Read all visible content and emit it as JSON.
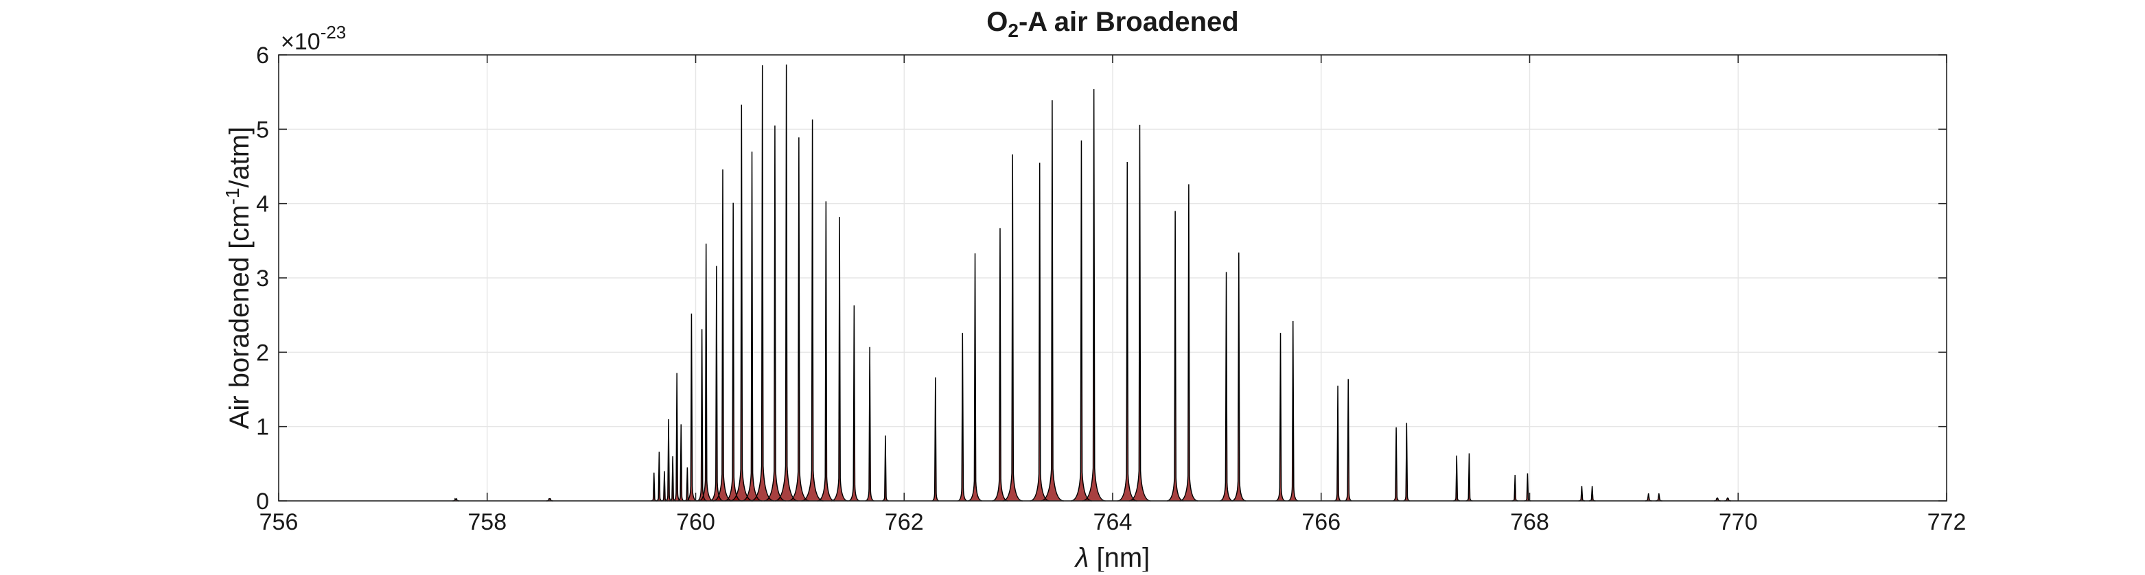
{
  "chart_data": {
    "type": "line",
    "title": {
      "main": "O",
      "sub": "2",
      "rest": "-A air Broadened"
    },
    "xlabel": {
      "symbol": "λ",
      "rest": " [nm]"
    },
    "ylabel": {
      "pre": "Air boradened [cm",
      "sup": "-1",
      "post": "/atm]"
    },
    "y_exponent": {
      "base": "×10",
      "power": "-23"
    },
    "xlim": [
      756,
      772
    ],
    "ylim": [
      0,
      6
    ],
    "x_ticks": [
      "756",
      "758",
      "760",
      "762",
      "764",
      "766",
      "768",
      "770",
      "772"
    ],
    "y_ticks": [
      "0",
      "1",
      "2",
      "3",
      "4",
      "5",
      "6"
    ],
    "grid": true,
    "colors": {
      "profile": "#000000",
      "fill": "#8b0000",
      "grid": "#e6e6e6",
      "axis": "#262626"
    },
    "series": [
      {
        "x": [
          757.7,
          758.6,
          759.6,
          759.65,
          759.7,
          759.74,
          759.78,
          759.82,
          759.86,
          759.92,
          759.96,
          760.06,
          760.1,
          760.2,
          760.26,
          760.36,
          760.44,
          760.54,
          760.64,
          760.76,
          760.87,
          760.99,
          761.12,
          761.25,
          761.38,
          761.52,
          761.67,
          761.82,
          762.3,
          762.56,
          762.68,
          762.92,
          763.04,
          763.3,
          763.42,
          763.7,
          763.82,
          764.14,
          764.26,
          764.6,
          764.73,
          765.09,
          765.21,
          765.61,
          765.73,
          766.16,
          766.26,
          766.72,
          766.82,
          767.3,
          767.42,
          767.86,
          767.98,
          768.5,
          768.6,
          769.14,
          769.24,
          769.8,
          769.9
        ],
        "y": [
          0.02,
          0.03,
          0.38,
          0.66,
          0.4,
          1.1,
          0.6,
          1.72,
          1.03,
          0.45,
          2.52,
          2.31,
          3.46,
          3.16,
          4.46,
          4.01,
          5.33,
          4.7,
          5.86,
          5.05,
          5.87,
          4.89,
          5.13,
          4.03,
          3.82,
          2.63,
          2.07,
          0.88,
          1.66,
          2.26,
          3.33,
          3.67,
          4.66,
          4.55,
          5.39,
          4.85,
          5.54,
          4.56,
          5.06,
          3.9,
          4.26,
          3.08,
          3.34,
          2.26,
          2.42,
          1.55,
          1.64,
          0.99,
          1.05,
          0.61,
          0.64,
          0.35,
          0.37,
          0.2,
          0.2,
          0.1,
          0.1,
          0.04,
          0.04
        ]
      }
    ]
  }
}
